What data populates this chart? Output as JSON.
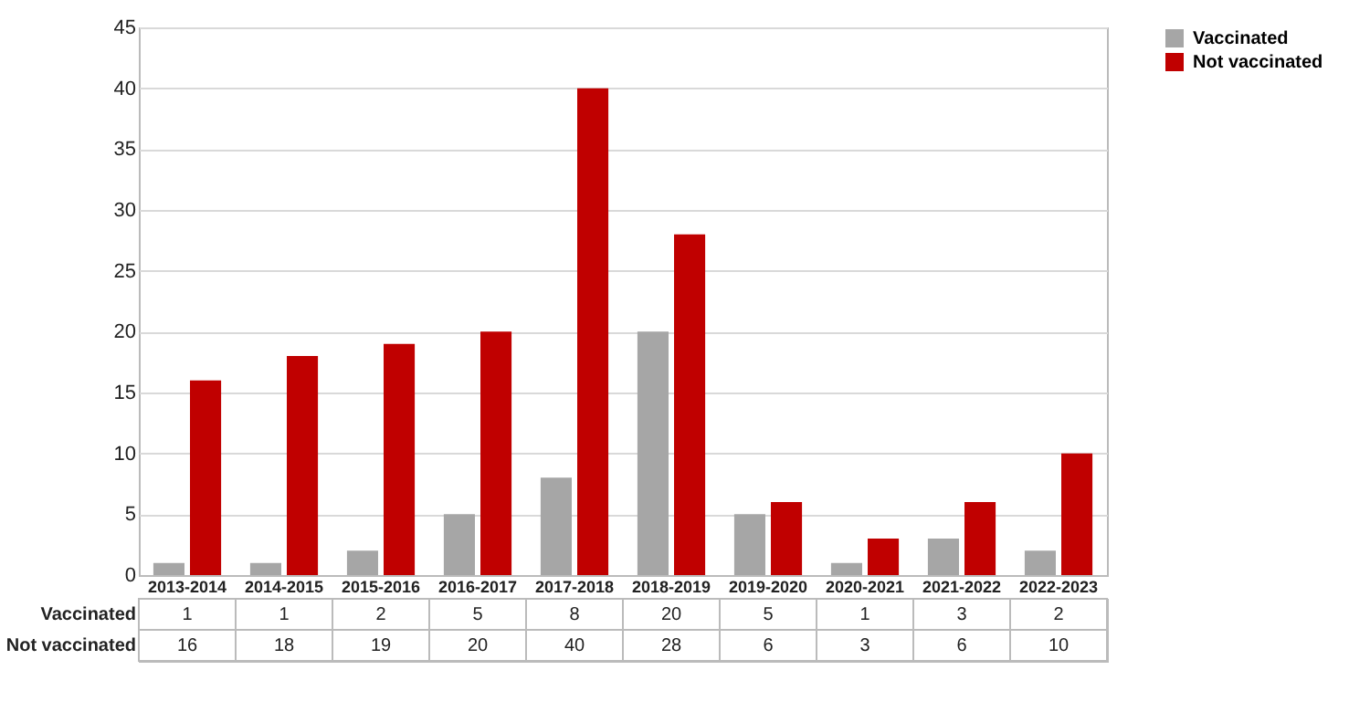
{
  "chart_data": {
    "type": "bar",
    "categories": [
      "2013-2014",
      "2014-2015",
      "2015-2016",
      "2016-2017",
      "2017-2018",
      "2018-2019",
      "2019-2020",
      "2020-2021",
      "2021-2022",
      "2022-2023"
    ],
    "series": [
      {
        "name": "Vaccinated",
        "color": "#a6a6a6",
        "values": [
          1,
          1,
          2,
          5,
          8,
          20,
          5,
          1,
          3,
          2
        ]
      },
      {
        "name": "Not vaccinated",
        "color": "#c00000",
        "values": [
          16,
          18,
          19,
          20,
          40,
          28,
          6,
          3,
          6,
          10
        ]
      }
    ],
    "ylim": [
      0,
      45
    ],
    "yticks": [
      0,
      5,
      10,
      15,
      20,
      25,
      30,
      35,
      40,
      45
    ],
    "grid": "y",
    "legend": "right",
    "data_labels": true
  }
}
